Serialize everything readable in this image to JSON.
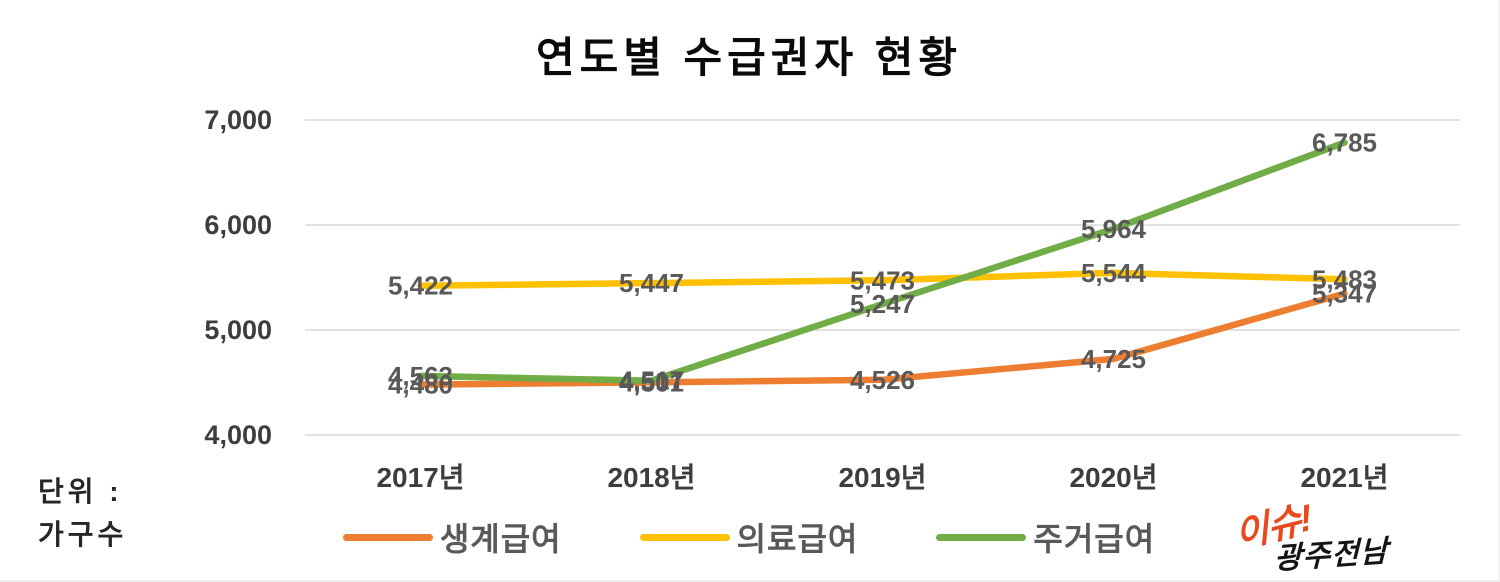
{
  "title": "연도별 수급권자 현황",
  "unit": {
    "line1": "단위 :",
    "line2": "가구수"
  },
  "chart_data": {
    "type": "line",
    "title": "연도별 수급권자 현황",
    "categories": [
      "2017년",
      "2018년",
      "2019년",
      "2020년",
      "2021년"
    ],
    "series": [
      {
        "name": "생계급여",
        "color": "#ED7D31",
        "values": [
          4480,
          4501,
          4526,
          4725,
          5347
        ]
      },
      {
        "name": "의료급여",
        "color": "#FFC000",
        "values": [
          5422,
          5447,
          5473,
          5544,
          5483
        ]
      },
      {
        "name": "주거급여",
        "color": "#70AD47",
        "values": [
          4563,
          4517,
          5247,
          5964,
          6785
        ]
      }
    ],
    "ylim": [
      4000,
      7000
    ],
    "yticks": [
      4000,
      5000,
      6000,
      7000
    ],
    "ytick_labels": [
      "4,000",
      "5,000",
      "6,000",
      "7,000"
    ],
    "grid": true,
    "grid_color": "#D9D9D9",
    "data_label_color": "#595959",
    "legend_position": "bottom",
    "unit_note": "단위 : 가구수"
  },
  "logo": {
    "line1": "이슈!",
    "line2": "광주전남",
    "color1": "#E8491D",
    "color2": "#141414"
  }
}
